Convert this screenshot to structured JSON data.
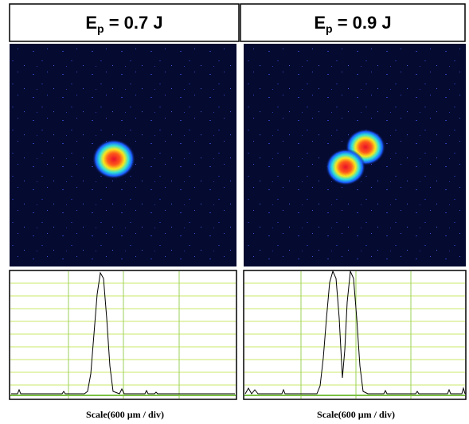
{
  "panels": [
    {
      "title": {
        "symbol": "E",
        "subscript": "p",
        "rest": " = 0.7 J"
      },
      "scale_label": "Scale(600 µm / div)"
    },
    {
      "title": {
        "symbol": "E",
        "subscript": "p",
        "rest": " = 0.9 J"
      },
      "scale_label": "Scale(600 µm / div)"
    }
  ]
}
